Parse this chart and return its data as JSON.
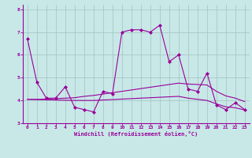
{
  "title": "",
  "xlabel": "Windchill (Refroidissement éolien,°C)",
  "background_color": "#c8e8e8",
  "grid_color": "#a8c8c8",
  "line_color": "#990099",
  "x_values": [
    0,
    1,
    2,
    3,
    4,
    5,
    6,
    7,
    8,
    9,
    10,
    11,
    12,
    13,
    14,
    15,
    16,
    17,
    18,
    19,
    20,
    21,
    22,
    23
  ],
  "series1": [
    6.7,
    4.8,
    4.1,
    4.1,
    4.6,
    3.7,
    3.6,
    3.5,
    4.4,
    4.3,
    7.0,
    7.1,
    7.1,
    7.0,
    7.3,
    5.7,
    6.0,
    4.5,
    4.4,
    5.2,
    3.8,
    3.6,
    3.9,
    3.6
  ],
  "trend_up": [
    4.05,
    4.05,
    4.06,
    4.08,
    4.1,
    4.12,
    4.18,
    4.22,
    4.28,
    4.34,
    4.4,
    4.46,
    4.52,
    4.58,
    4.64,
    4.7,
    4.76,
    4.72,
    4.7,
    4.68,
    4.4,
    4.2,
    4.1,
    3.95
  ],
  "trend_down": [
    4.05,
    4.04,
    4.03,
    4.02,
    4.01,
    4.0,
    4.0,
    4.0,
    4.02,
    4.04,
    4.06,
    4.08,
    4.1,
    4.12,
    4.14,
    4.16,
    4.18,
    4.1,
    4.05,
    4.0,
    3.85,
    3.72,
    3.68,
    3.58
  ],
  "ylim": [
    3.0,
    8.2
  ],
  "xlim": [
    -0.5,
    23.5
  ],
  "yticks": [
    3,
    4,
    5,
    6,
    7,
    8
  ],
  "xticks": [
    0,
    1,
    2,
    3,
    4,
    5,
    6,
    7,
    8,
    9,
    10,
    11,
    12,
    13,
    14,
    15,
    16,
    17,
    18,
    19,
    20,
    21,
    22,
    23
  ]
}
